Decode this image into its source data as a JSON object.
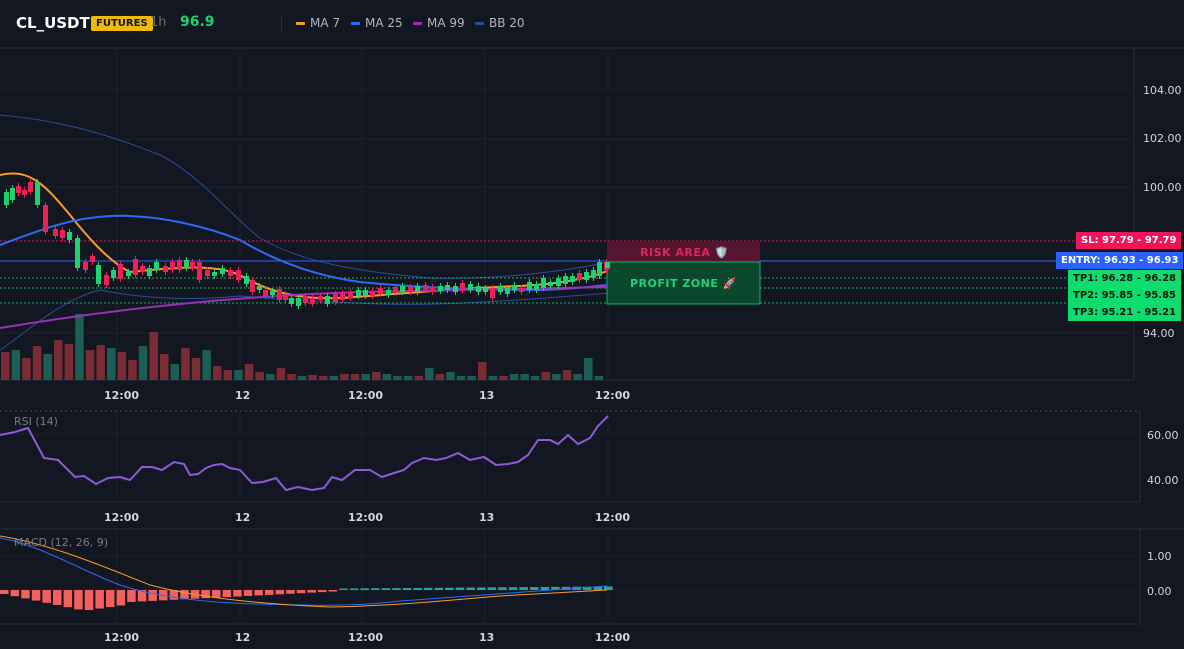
{
  "header": {
    "symbol": "CL_USDT",
    "badge": "FUTURES",
    "interval": "1h",
    "price": "96.9",
    "legend": [
      {
        "label": "MA 7",
        "color": "#f89b2f"
      },
      {
        "label": "MA 25",
        "color": "#2d6cf0"
      },
      {
        "label": "MA 99",
        "color": "#9b30b8"
      },
      {
        "label": "BB 20",
        "color": "#2a4e9a"
      }
    ]
  },
  "colors": {
    "up": "#26a69a",
    "down": "#ef5350",
    "candle_up": "#1ed26f",
    "candle_down": "#ef1f58",
    "sl": "#f0145a",
    "entry": "#2962ff",
    "tp": "#0fdc6e"
  },
  "price_axis": {
    "labels": [
      "104.00",
      "102.00",
      "100.00",
      "94.00"
    ]
  },
  "time_axis": {
    "labels": [
      "12:00",
      "12",
      "12:00",
      "13",
      "12:00"
    ]
  },
  "zones": {
    "risk": "RISK AREA 🛡️",
    "profit": "PROFIT ZONE 🚀"
  },
  "levels": {
    "sl": {
      "label": "SL: 97.79",
      "value": "97.79"
    },
    "entry": {
      "label": "ENTRY: 96.93",
      "value": "96.93"
    },
    "tp1": {
      "label": "TP1: 96.28",
      "value": "96.28"
    },
    "tp2": {
      "label": "TP2: 95.85",
      "value": "95.85"
    },
    "tp3": {
      "label": "TP3: 95.21",
      "value": "95.21"
    }
  },
  "rsi": {
    "title": "RSI (14)",
    "axis": [
      "60.00",
      "40.00"
    ]
  },
  "macd": {
    "title": "MACD (12, 26, 9)",
    "axis": [
      "1.00",
      "0.00"
    ]
  }
}
